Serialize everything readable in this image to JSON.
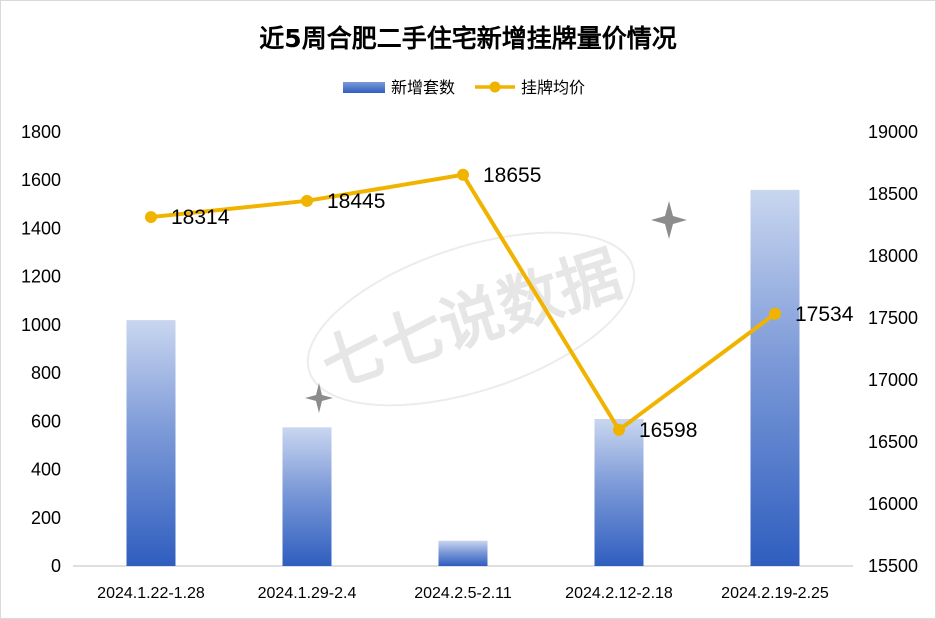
{
  "chart_data": {
    "type": "bar+line",
    "title": "近5周合肥二手住宅新增挂牌量价情况",
    "categories": [
      "2024.1.22-1.28",
      "2024.1.29-2.4",
      "2024.2.5-2.11",
      "2024.2.12-2.18",
      "2024.2.19-2.25"
    ],
    "series": [
      {
        "name": "新增套数",
        "type": "bar",
        "axis": "left",
        "values": [
          1020,
          575,
          105,
          610,
          1560
        ]
      },
      {
        "name": "挂牌均价",
        "type": "line",
        "axis": "right",
        "values": [
          18314,
          18445,
          18655,
          16598,
          17534
        ]
      }
    ],
    "left_axis": {
      "ylim": [
        0,
        1800
      ],
      "ticks": [
        "0",
        "200",
        "400",
        "600",
        "800",
        "1000",
        "1200",
        "1400",
        "1600",
        "1800"
      ]
    },
    "right_axis": {
      "ylim": [
        15500,
        19000
      ],
      "ticks": [
        "15500",
        "16000",
        "16500",
        "17000",
        "17500",
        "18000",
        "18500",
        "19000"
      ]
    },
    "line_labels": [
      "18314",
      "18445",
      "18655",
      "16598",
      "17534"
    ],
    "legend_position": "top-center",
    "grid": false,
    "colors": {
      "bar_top": "#c9d6ef",
      "bar_bottom": "#2f5ebf",
      "line": "#f0b400",
      "axis": "#bfbfbf"
    },
    "watermark": "七七说数据"
  }
}
